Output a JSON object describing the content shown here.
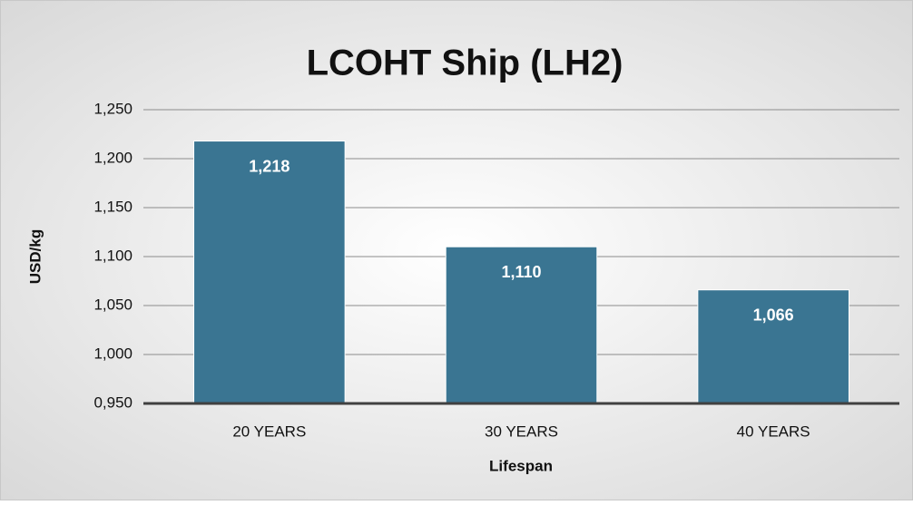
{
  "chart_data": {
    "type": "bar",
    "title": "LCOHT Ship (LH2)",
    "x_label": "Lifespan",
    "y_label": "USD/kg",
    "categories": [
      "20 YEARS",
      "30 YEARS",
      "40 YEARS"
    ],
    "values": [
      1.218,
      1.11,
      1.066
    ],
    "value_labels": [
      "1,218",
      "1,110",
      "1,066"
    ],
    "color": "#3a7592",
    "ylim": [
      0.95,
      1.25
    ],
    "yticks": [
      {
        "value": 0.95,
        "label": "0,950"
      },
      {
        "value": 1.0,
        "label": "1,000"
      },
      {
        "value": 1.05,
        "label": "1,050"
      },
      {
        "value": 1.1,
        "label": "1,100"
      },
      {
        "value": 1.15,
        "label": "1,150"
      },
      {
        "value": 1.2,
        "label": "1,200"
      },
      {
        "value": 1.25,
        "label": "1,250"
      }
    ],
    "grid": true
  }
}
